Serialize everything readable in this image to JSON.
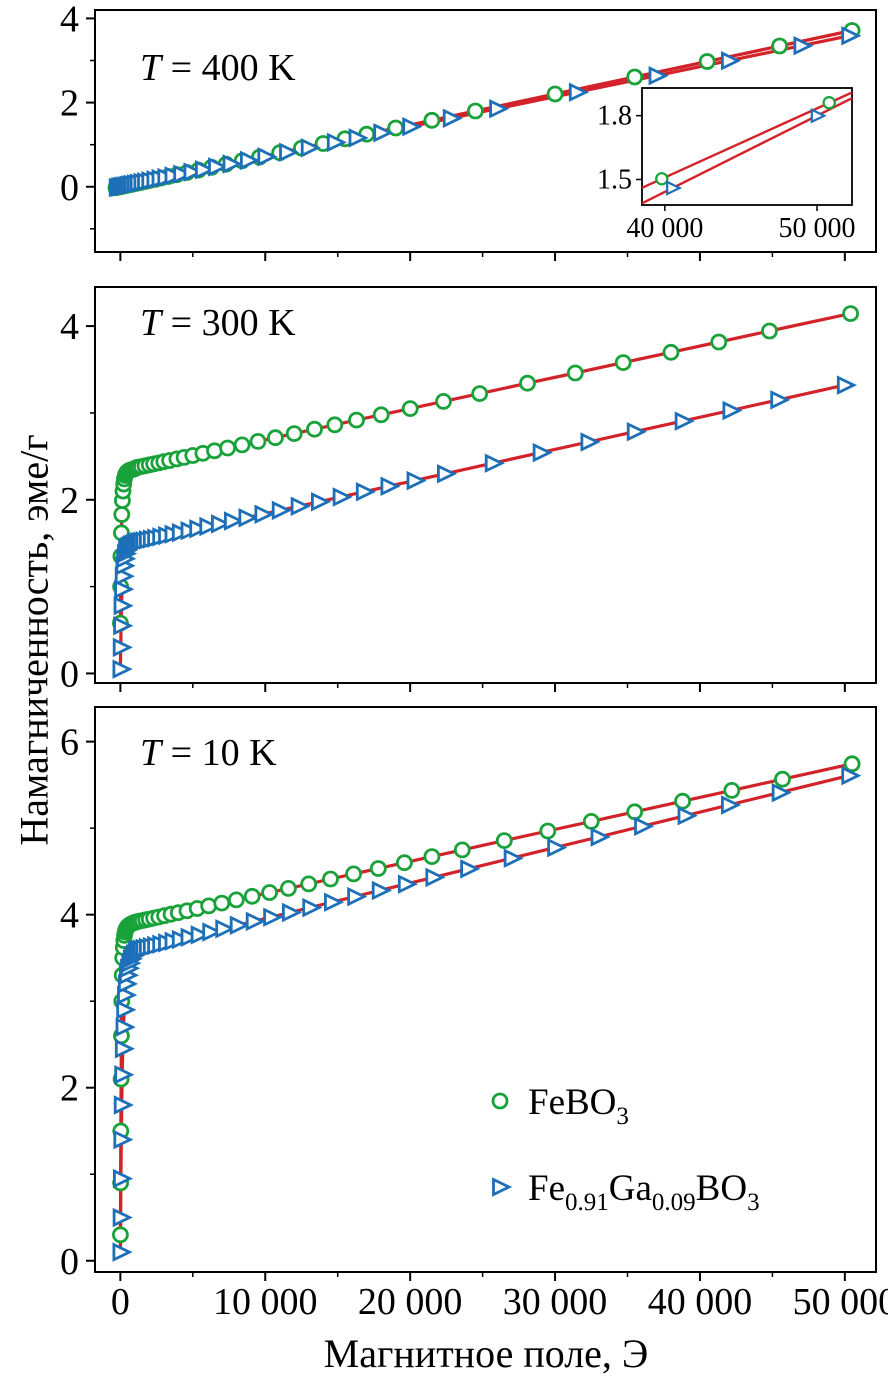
{
  "figure": {
    "ylabel": "Намагниченность, эме/г",
    "xlabel": "Магнитное поле, Э",
    "colors": {
      "line": "#d2232a",
      "green": "#19a23a",
      "blue": "#1d6fb8",
      "axis": "#000000"
    },
    "legend": {
      "items": [
        {
          "series": "FeBO3",
          "marker": "circle",
          "parts": [
            {
              "t": "FeBO"
            },
            {
              "t": "3",
              "sub": true
            }
          ]
        },
        {
          "series": "Fe0.91Ga0.09BO3",
          "marker": "triangle",
          "parts": [
            {
              "t": "Fe"
            },
            {
              "t": "0.91",
              "sub": true
            },
            {
              "t": "Ga"
            },
            {
              "t": "0.09",
              "sub": true
            },
            {
              "t": "BO"
            },
            {
              "t": "3",
              "sub": true
            }
          ]
        }
      ]
    }
  },
  "chart_data": [
    {
      "type": "scatter",
      "title": {
        "sym": "T",
        "rest": " = 400 K"
      },
      "xlim": [
        -1750,
        52150
      ],
      "ylim": [
        -1.55,
        4.2
      ],
      "yticks": [
        0,
        2,
        4
      ],
      "yticklabels": [
        "0",
        "2",
        "4"
      ],
      "yminor": [
        -1,
        1,
        3
      ],
      "xticks": [
        0,
        10000,
        20000,
        30000,
        40000,
        50000
      ],
      "xminor": [
        5000,
        15000,
        25000,
        35000,
        45000
      ],
      "series": [
        {
          "name": "FeBO3",
          "marker": "circle",
          "x": [
            -300,
            -150,
            -50,
            50,
            150,
            250,
            400,
            550,
            700,
            850,
            1000,
            1200,
            1400,
            1700,
            2000,
            2400,
            2800,
            3300,
            3900,
            4600,
            5400,
            6300,
            7300,
            8400,
            9600,
            11000,
            12500,
            14000,
            15500,
            17000,
            19000,
            21500,
            24500,
            30000,
            35500,
            40500,
            45500,
            50500
          ],
          "y": [
            -0.022,
            -0.011,
            -0.004,
            0.004,
            0.011,
            0.018,
            0.029,
            0.04,
            0.051,
            0.062,
            0.074,
            0.088,
            0.103,
            0.125,
            0.147,
            0.176,
            0.206,
            0.243,
            0.287,
            0.338,
            0.397,
            0.463,
            0.537,
            0.617,
            0.706,
            0.809,
            0.919,
            1.029,
            1.139,
            1.25,
            1.397,
            1.58,
            1.801,
            2.205,
            2.609,
            2.977,
            3.344,
            3.712
          ]
        },
        {
          "name": "Fe0.91Ga0.09BO3",
          "marker": "triangle",
          "x": [
            -250,
            -100,
            0,
            100,
            200,
            350,
            500,
            650,
            800,
            1000,
            1200,
            1450,
            1700,
            2000,
            2350,
            2700,
            3100,
            3600,
            4200,
            4900,
            5700,
            6600,
            7600,
            8800,
            10000,
            11500,
            13000,
            14800,
            16300,
            18000,
            20000,
            22800,
            26000,
            31500,
            37000,
            42000,
            47000,
            50300
          ],
          "y": [
            -0.018,
            -0.007,
            0,
            0.007,
            0.014,
            0.025,
            0.036,
            0.046,
            0.057,
            0.071,
            0.086,
            0.103,
            0.121,
            0.143,
            0.168,
            0.193,
            0.221,
            0.257,
            0.299,
            0.349,
            0.406,
            0.471,
            0.542,
            0.627,
            0.713,
            0.82,
            0.927,
            1.055,
            1.162,
            1.283,
            1.426,
            1.626,
            1.854,
            2.246,
            2.638,
            2.995,
            3.351,
            3.586
          ]
        }
      ],
      "inset": {
        "xlim": [
          38500,
          52300
        ],
        "ylim": [
          1.38,
          1.93
        ],
        "xticks": [
          40000,
          50000
        ],
        "xticklabels": [
          "40 000",
          "50 000"
        ],
        "yticks": [
          1.5,
          1.8
        ],
        "yticklabels": [
          "1.5",
          "1.8"
        ],
        "series": [
          {
            "marker": "circle",
            "line_x": [
              38500,
              52300
            ],
            "line_y": [
              1.461,
              1.909
            ],
            "mx": [
              39800,
              50800
            ],
            "my": [
              1.503,
              1.861
            ]
          },
          {
            "marker": "triangle",
            "line_x": [
              38500,
              52300
            ],
            "line_y": [
              1.388,
              1.882
            ],
            "mx": [
              40500,
              50000
            ],
            "my": [
              1.46,
              1.8
            ]
          }
        ]
      }
    },
    {
      "type": "scatter",
      "title": {
        "sym": "T",
        "rest": " = 300 K"
      },
      "xlim": [
        -1750,
        52150
      ],
      "ylim": [
        -0.11,
        4.45
      ],
      "yticks": [
        0,
        2,
        4
      ],
      "yticklabels": [
        "0",
        "2",
        "4"
      ],
      "yminor": [
        1,
        3
      ],
      "xticks": [
        0,
        10000,
        20000,
        30000,
        40000,
        50000
      ],
      "xminor": [
        5000,
        15000,
        25000,
        35000,
        45000
      ],
      "series": [
        {
          "name": "FeBO3",
          "marker": "circle",
          "x": [
            0,
            20,
            40,
            70,
            100,
            140,
            180,
            230,
            280,
            340,
            400,
            470,
            550,
            640,
            740,
            850,
            970,
            1100,
            1250,
            1450,
            1700,
            2000,
            2300,
            2650,
            3000,
            3400,
            3900,
            4400,
            5000,
            5700,
            6500,
            7400,
            8400,
            9500,
            10700,
            12000,
            13400,
            14800,
            16300,
            18000,
            20000,
            22300,
            24800,
            28100,
            31400,
            34700,
            38000,
            41300,
            44800,
            50400
          ],
          "y": [
            0.58,
            1.0,
            1.35,
            1.62,
            1.83,
            1.99,
            2.1,
            2.18,
            2.24,
            2.28,
            2.305,
            2.32,
            2.33,
            2.34,
            2.345,
            2.35,
            2.355,
            2.37,
            2.375,
            2.382,
            2.391,
            2.402,
            2.413,
            2.425,
            2.438,
            2.452,
            2.47,
            2.488,
            2.51,
            2.535,
            2.564,
            2.596,
            2.632,
            2.672,
            2.715,
            2.762,
            2.812,
            2.863,
            2.917,
            2.978,
            3.05,
            3.133,
            3.223,
            3.342,
            3.46,
            3.579,
            3.698,
            3.817,
            3.943,
            4.144
          ]
        },
        {
          "name": "Fe0.91Ga0.09BO3",
          "marker": "triangle",
          "x": [
            0,
            25,
            50,
            80,
            120,
            160,
            210,
            260,
            320,
            390,
            460,
            540,
            630,
            730,
            840,
            960,
            1080,
            1230,
            1400,
            1600,
            1830,
            2100,
            2400,
            2750,
            3150,
            3600,
            4100,
            4700,
            5300,
            6000,
            6800,
            7700,
            8700,
            9800,
            11000,
            12300,
            13700,
            15200,
            16800,
            18500,
            20300,
            22400,
            25700,
            29000,
            32300,
            35500,
            38800,
            42100,
            45400,
            50000
          ],
          "y": [
            0.05,
            0.3,
            0.55,
            0.78,
            0.97,
            1.12,
            1.24,
            1.32,
            1.38,
            1.42,
            1.445,
            1.46,
            1.47,
            1.48,
            1.49,
            1.5,
            1.51,
            1.516,
            1.522,
            1.529,
            1.538,
            1.548,
            1.559,
            1.572,
            1.587,
            1.603,
            1.622,
            1.644,
            1.666,
            1.692,
            1.722,
            1.755,
            1.792,
            1.833,
            1.877,
            1.925,
            1.977,
            2.032,
            2.092,
            2.155,
            2.221,
            2.299,
            2.421,
            2.543,
            2.665,
            2.784,
            2.906,
            3.028,
            3.15,
            3.32
          ]
        }
      ]
    },
    {
      "type": "scatter",
      "title": {
        "sym": "T",
        "rest": " = 10 K"
      },
      "xlim": [
        -1750,
        52150
      ],
      "ylim": [
        -0.13,
        6.4
      ],
      "yticks": [
        0,
        2,
        4,
        6
      ],
      "yticklabels": [
        "0",
        "2",
        "4",
        "6"
      ],
      "yminor": [
        1,
        3,
        5
      ],
      "xticks": [
        0,
        10000,
        20000,
        30000,
        40000,
        50000
      ],
      "xminor": [
        5000,
        15000,
        25000,
        35000,
        45000
      ],
      "xticklabels": [
        "0",
        "10 000",
        "20 000",
        "30 000",
        "40 000",
        "50 000"
      ],
      "series": [
        {
          "name": "FeBO3",
          "marker": "circle",
          "x": [
            0,
            15,
            30,
            50,
            75,
            100,
            130,
            165,
            200,
            240,
            285,
            335,
            390,
            450,
            520,
            600,
            690,
            790,
            900,
            1020,
            1160,
            1320,
            1520,
            1750,
            2000,
            2300,
            2650,
            3050,
            3500,
            4000,
            4600,
            5300,
            6100,
            7000,
            8000,
            9100,
            10300,
            11600,
            13000,
            14500,
            16100,
            17800,
            19600,
            21500,
            23600,
            26500,
            29500,
            32500,
            35500,
            38800,
            42200,
            45700,
            50500
          ],
          "y": [
            0.3,
            0.9,
            1.5,
            2.1,
            2.6,
            3.0,
            3.3,
            3.5,
            3.62,
            3.7,
            3.76,
            3.8,
            3.83,
            3.85,
            3.865,
            3.878,
            3.888,
            3.897,
            3.905,
            3.913,
            3.918,
            3.924,
            3.931,
            3.94,
            3.949,
            3.96,
            3.973,
            3.988,
            4.005,
            4.023,
            4.045,
            4.071,
            4.101,
            4.134,
            4.171,
            4.212,
            4.256,
            4.304,
            4.356,
            4.412,
            4.471,
            4.534,
            4.6,
            4.671,
            4.748,
            4.856,
            4.967,
            5.078,
            5.189,
            5.311,
            5.436,
            5.566,
            5.744
          ]
        },
        {
          "name": "Fe0.91Ga0.09BO3",
          "marker": "triangle",
          "x": [
            0,
            20,
            40,
            65,
            95,
            130,
            170,
            215,
            265,
            320,
            380,
            450,
            530,
            620,
            720,
            830,
            950,
            1080,
            1230,
            1400,
            1600,
            1830,
            2100,
            2400,
            2750,
            3150,
            3600,
            4100,
            4700,
            5400,
            6200,
            7100,
            8100,
            9200,
            10400,
            11700,
            13100,
            14600,
            16200,
            17900,
            19700,
            21600,
            24000,
            27000,
            30000,
            33000,
            36000,
            39000,
            42000,
            45500,
            50300
          ],
          "y": [
            0.1,
            0.5,
            0.95,
            1.4,
            1.8,
            2.15,
            2.45,
            2.7,
            2.9,
            3.07,
            3.2,
            3.3,
            3.38,
            3.44,
            3.49,
            3.525,
            3.55,
            3.589,
            3.595,
            3.602,
            3.611,
            3.62,
            3.631,
            3.643,
            3.658,
            3.674,
            3.693,
            3.713,
            3.738,
            3.766,
            3.799,
            3.836,
            3.877,
            3.922,
            3.971,
            4.025,
            4.082,
            4.144,
            4.209,
            4.279,
            4.353,
            4.431,
            4.529,
            4.652,
            4.775,
            4.898,
            5.021,
            5.144,
            5.267,
            5.411,
            5.607
          ]
        }
      ]
    }
  ]
}
